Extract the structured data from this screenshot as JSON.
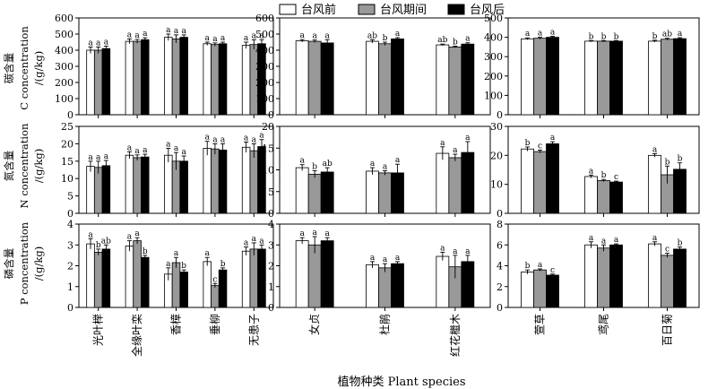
{
  "figure": {
    "x_title": "植物种类 Plant species",
    "legend": [
      {
        "label": "台风前",
        "color": "#ffffff"
      },
      {
        "label": "台风期间",
        "color": "#999999"
      },
      {
        "label": "台风后",
        "color": "#000000"
      }
    ],
    "row_labels": [
      [
        "碳含量",
        "C concentration",
        "/(g/kg)"
      ],
      [
        "氮含量",
        "N concentration",
        "/(g/kg)"
      ],
      [
        "磷含量",
        "P concentration",
        "/(g/kg)"
      ]
    ],
    "group_categories": [
      [
        "光叶榉",
        "全缘叶栾",
        "香樟",
        "垂柳",
        "无患子"
      ],
      [
        "女贞",
        "杜鹃",
        "红花檵木"
      ],
      [
        "萱草",
        "鸢尾",
        "百日菊"
      ]
    ]
  },
  "chart_data": [
    {
      "type": "bar",
      "row": "C",
      "group": 0,
      "ylim": [
        0,
        600
      ],
      "yticks": [
        0,
        100,
        200,
        300,
        400,
        500,
        600
      ],
      "categories": [
        "光叶榉",
        "全缘叶栾",
        "香樟",
        "垂柳",
        "无患子"
      ],
      "series": [
        {
          "name": "台风前",
          "values": [
            400,
            455,
            480,
            440,
            430
          ],
          "errors": [
            20,
            15,
            20,
            10,
            20
          ],
          "labels": [
            "a",
            "a",
            "a",
            "a",
            "a"
          ]
        },
        {
          "name": "台风期间",
          "values": [
            400,
            455,
            470,
            435,
            435
          ],
          "errors": [
            20,
            12,
            25,
            10,
            30
          ],
          "labels": [
            "a",
            "a",
            "a",
            "a",
            "a"
          ]
        },
        {
          "name": "台风后",
          "values": [
            410,
            465,
            480,
            440,
            440
          ],
          "errors": [
            15,
            12,
            15,
            10,
            25
          ],
          "labels": [
            "a",
            "a",
            "a",
            "a",
            "a"
          ]
        }
      ]
    },
    {
      "type": "bar",
      "row": "C",
      "group": 1,
      "ylim": [
        0,
        600
      ],
      "yticks": [
        0,
        100,
        200,
        300,
        400,
        500,
        600
      ],
      "categories": [
        "女贞",
        "杜鹃",
        "红花檵木"
      ],
      "series": [
        {
          "name": "台风前",
          "values": [
            458,
            455,
            433
          ],
          "errors": [
            8,
            10,
            5
          ],
          "labels": [
            "a",
            "ab",
            "ab"
          ]
        },
        {
          "name": "台风期间",
          "values": [
            455,
            440,
            420
          ],
          "errors": [
            8,
            10,
            5
          ],
          "labels": [
            "a",
            "b",
            "b"
          ]
        },
        {
          "name": "台风后",
          "values": [
            445,
            470,
            438
          ],
          "errors": [
            20,
            8,
            8
          ],
          "labels": [
            "a",
            "a",
            "a"
          ]
        }
      ]
    },
    {
      "type": "bar",
      "row": "C",
      "group": 2,
      "ylim": [
        0,
        500
      ],
      "yticks": [
        0,
        100,
        200,
        300,
        400,
        500
      ],
      "categories": [
        "萱草",
        "鸢尾",
        "百日菊"
      ],
      "series": [
        {
          "name": "台风前",
          "values": [
            392,
            380,
            380
          ],
          "errors": [
            5,
            3,
            5
          ],
          "labels": [
            "a",
            "b",
            "b"
          ]
        },
        {
          "name": "台风期间",
          "values": [
            395,
            380,
            390
          ],
          "errors": [
            5,
            3,
            5
          ],
          "labels": [
            "a",
            "b",
            "ab"
          ]
        },
        {
          "name": "台风后",
          "values": [
            400,
            380,
            393
          ],
          "errors": [
            5,
            3,
            5
          ],
          "labels": [
            "a",
            "b",
            "a"
          ]
        }
      ]
    },
    {
      "type": "bar",
      "row": "N",
      "group": 0,
      "ylim": [
        0,
        25
      ],
      "yticks": [
        0,
        5,
        10,
        15,
        20,
        25
      ],
      "categories": [
        "光叶榉",
        "全缘叶栾",
        "香樟",
        "垂柳",
        "无患子"
      ],
      "series": [
        {
          "name": "台风前",
          "values": [
            13.5,
            16.7,
            16.7,
            18.7,
            19.0
          ],
          "errors": [
            1.5,
            1.0,
            2.0,
            2.0,
            1.5
          ],
          "labels": [
            "a",
            "a",
            "a",
            "a",
            "a"
          ]
        },
        {
          "name": "台风期间",
          "values": [
            13.2,
            16.0,
            15.0,
            18.5,
            18.0
          ],
          "errors": [
            1.8,
            0.8,
            2.5,
            1.5,
            2.0
          ],
          "labels": [
            "a",
            "a",
            "a",
            "a",
            "a"
          ]
        },
        {
          "name": "台风后",
          "values": [
            13.7,
            16.2,
            15.0,
            18.2,
            19.2
          ],
          "errors": [
            1.5,
            0.8,
            1.5,
            1.8,
            2.0
          ],
          "labels": [
            "a",
            "a",
            "a",
            "a",
            "a"
          ]
        }
      ]
    },
    {
      "type": "bar",
      "row": "N",
      "group": 1,
      "ylim": [
        0,
        20
      ],
      "yticks": [
        0,
        5,
        10,
        15,
        20
      ],
      "categories": [
        "女贞",
        "杜鹃",
        "红花檵木"
      ],
      "series": [
        {
          "name": "台风前",
          "values": [
            10.5,
            9.7,
            13.8
          ],
          "errors": [
            0.7,
            0.8,
            1.5
          ],
          "labels": [
            "a",
            "a",
            "a"
          ]
        },
        {
          "name": "台风期间",
          "values": [
            9.0,
            9.3,
            12.8
          ],
          "errors": [
            0.8,
            0.5,
            0.8
          ],
          "labels": [
            "b",
            "a",
            "a"
          ]
        },
        {
          "name": "台风后",
          "values": [
            9.5,
            9.3,
            14.0
          ],
          "errors": [
            1.0,
            2.0,
            2.5
          ],
          "labels": [
            "ab",
            "a",
            "a"
          ]
        }
      ]
    },
    {
      "type": "bar",
      "row": "N",
      "group": 2,
      "ylim": [
        0,
        30
      ],
      "yticks": [
        0,
        10,
        20,
        30
      ],
      "categories": [
        "萱草",
        "鸢尾",
        "百日菊"
      ],
      "series": [
        {
          "name": "台风前",
          "values": [
            22.2,
            12.7,
            20.0
          ],
          "errors": [
            0.7,
            0.5,
            0.6
          ],
          "labels": [
            "b",
            "a",
            "a"
          ]
        },
        {
          "name": "台风期间",
          "values": [
            21.3,
            11.3,
            13.3
          ],
          "errors": [
            0.5,
            0.4,
            3.0
          ],
          "labels": [
            "c",
            "b",
            "b"
          ]
        },
        {
          "name": "台风后",
          "values": [
            24.0,
            10.8,
            15.2
          ],
          "errors": [
            0.7,
            0.3,
            2.2
          ],
          "labels": [
            "a",
            "c",
            "b"
          ]
        }
      ]
    },
    {
      "type": "bar",
      "row": "P",
      "group": 0,
      "ylim": [
        0,
        4
      ],
      "yticks": [
        0,
        1,
        2,
        3,
        4
      ],
      "categories": [
        "光叶榉",
        "全缘叶栾",
        "香樟",
        "垂柳",
        "无患子"
      ],
      "series": [
        {
          "name": "台风前",
          "values": [
            3.05,
            2.95,
            1.6,
            2.2,
            2.7
          ],
          "errors": [
            0.25,
            0.25,
            0.3,
            0.2,
            0.2
          ],
          "labels": [
            "a",
            "a",
            "a",
            "a",
            "a"
          ]
        },
        {
          "name": "台风期间",
          "values": [
            2.65,
            3.2,
            2.15,
            1.05,
            2.8
          ],
          "errors": [
            0.15,
            0.15,
            0.25,
            0.1,
            0.3
          ],
          "labels": [
            "b",
            "a",
            "a",
            "c",
            "a"
          ]
        },
        {
          "name": "台风后",
          "values": [
            2.8,
            2.4,
            1.7,
            1.8,
            2.8
          ],
          "errors": [
            0.2,
            0.1,
            0.1,
            0.1,
            0.2
          ],
          "labels": [
            "ab",
            "b",
            "b",
            "b",
            "a"
          ]
        }
      ]
    },
    {
      "type": "bar",
      "row": "P",
      "group": 1,
      "ylim": [
        0,
        4
      ],
      "yticks": [
        0,
        1,
        2,
        3,
        4
      ],
      "categories": [
        "女贞",
        "杜鹃",
        "红花檵木"
      ],
      "series": [
        {
          "name": "台风前",
          "values": [
            3.2,
            2.05,
            2.45
          ],
          "errors": [
            0.15,
            0.15,
            0.2
          ],
          "labels": [
            "a",
            "a",
            "a"
          ]
        },
        {
          "name": "台风期间",
          "values": [
            3.0,
            1.9,
            1.95
          ],
          "errors": [
            0.4,
            0.2,
            0.55
          ],
          "labels": [
            "a",
            "a",
            "a"
          ]
        },
        {
          "name": "台风后",
          "values": [
            3.2,
            2.1,
            2.2
          ],
          "errors": [
            0.15,
            0.1,
            0.3
          ],
          "labels": [
            "a",
            "a",
            "a"
          ]
        }
      ]
    },
    {
      "type": "bar",
      "row": "P",
      "group": 2,
      "ylim": [
        0,
        8
      ],
      "yticks": [
        0,
        2,
        4,
        6,
        8
      ],
      "categories": [
        "萱草",
        "鸢尾",
        "百日菊"
      ],
      "series": [
        {
          "name": "台风前",
          "values": [
            3.4,
            6.0,
            6.1
          ],
          "errors": [
            0.2,
            0.3,
            0.2
          ],
          "labels": [
            "b",
            "a",
            "a"
          ]
        },
        {
          "name": "台风期间",
          "values": [
            3.6,
            5.7,
            5.0
          ],
          "errors": [
            0.1,
            0.3,
            0.2
          ],
          "labels": [
            "a",
            "a",
            "c"
          ]
        },
        {
          "name": "台风后",
          "values": [
            3.1,
            6.0,
            5.6
          ],
          "errors": [
            0.1,
            0.1,
            0.2
          ],
          "labels": [
            "c",
            "a",
            "b"
          ]
        }
      ]
    }
  ]
}
